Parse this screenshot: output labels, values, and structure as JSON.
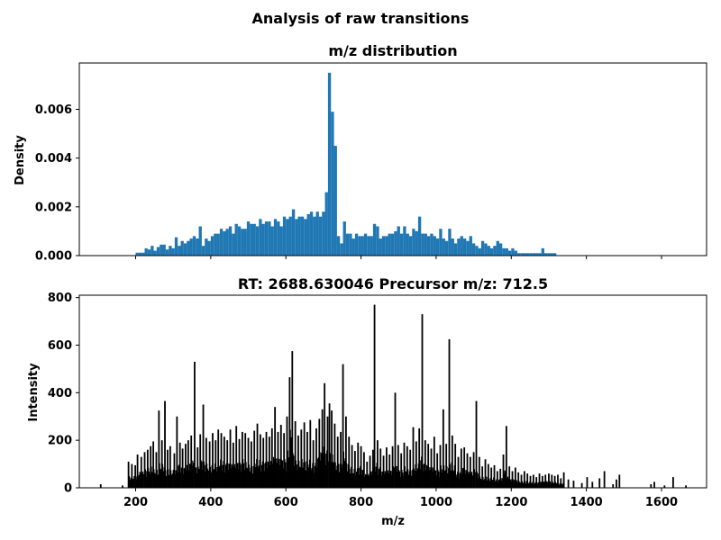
{
  "figure": {
    "suptitle": "Analysis of raw transitions"
  },
  "chart_data": [
    {
      "type": "bar",
      "title": "m/z distribution",
      "xlabel": "",
      "ylabel": "Density",
      "xlim": [
        50,
        1720
      ],
      "ylim": [
        0,
        0.0079
      ],
      "yticks": [
        "0.000",
        "0.002",
        "0.004",
        "0.006"
      ],
      "ytick_values": [
        0,
        0.002,
        0.004,
        0.006
      ],
      "xticks": [
        200,
        400,
        600,
        800,
        1000,
        1200,
        1400,
        1600
      ],
      "xtick_labels_shown": false,
      "bar_color": "#1f77b4",
      "bin_width": 8,
      "bins": [
        [
          200,
          0.00012
        ],
        [
          208,
          0.00012
        ],
        [
          216,
          0.00012
        ],
        [
          224,
          0.0003
        ],
        [
          232,
          0.00025
        ],
        [
          240,
          0.0004
        ],
        [
          248,
          0.0002
        ],
        [
          256,
          0.00035
        ],
        [
          264,
          0.00045
        ],
        [
          272,
          0.00045
        ],
        [
          280,
          0.00025
        ],
        [
          288,
          0.0004
        ],
        [
          296,
          0.0003
        ],
        [
          304,
          0.00075
        ],
        [
          312,
          0.0004
        ],
        [
          320,
          0.0006
        ],
        [
          328,
          0.0005
        ],
        [
          336,
          0.0006
        ],
        [
          344,
          0.0007
        ],
        [
          352,
          0.0008
        ],
        [
          360,
          0.0007
        ],
        [
          368,
          0.0012
        ],
        [
          376,
          0.0004
        ],
        [
          384,
          0.0007
        ],
        [
          392,
          0.0006
        ],
        [
          400,
          0.0008
        ],
        [
          408,
          0.0009
        ],
        [
          416,
          0.0009
        ],
        [
          424,
          0.0011
        ],
        [
          432,
          0.001
        ],
        [
          440,
          0.0011
        ],
        [
          448,
          0.0012
        ],
        [
          456,
          0.0009
        ],
        [
          464,
          0.0013
        ],
        [
          472,
          0.0012
        ],
        [
          480,
          0.0011
        ],
        [
          488,
          0.0011
        ],
        [
          496,
          0.0014
        ],
        [
          504,
          0.0013
        ],
        [
          512,
          0.0013
        ],
        [
          520,
          0.0012
        ],
        [
          528,
          0.0015
        ],
        [
          536,
          0.0013
        ],
        [
          544,
          0.0014
        ],
        [
          552,
          0.0014
        ],
        [
          560,
          0.0012
        ],
        [
          568,
          0.0015
        ],
        [
          576,
          0.0014
        ],
        [
          584,
          0.0012
        ],
        [
          592,
          0.0016
        ],
        [
          600,
          0.0015
        ],
        [
          608,
          0.0016
        ],
        [
          616,
          0.0019
        ],
        [
          624,
          0.0015
        ],
        [
          632,
          0.0016
        ],
        [
          640,
          0.0016
        ],
        [
          648,
          0.0015
        ],
        [
          656,
          0.0017
        ],
        [
          664,
          0.0018
        ],
        [
          672,
          0.0016
        ],
        [
          680,
          0.0018
        ],
        [
          688,
          0.0016
        ],
        [
          696,
          0.0018
        ],
        [
          704,
          0.0026
        ],
        [
          712,
          0.0075
        ],
        [
          720,
          0.0059
        ],
        [
          728,
          0.0045
        ],
        [
          736,
          0.0008
        ],
        [
          744,
          0.0005
        ],
        [
          752,
          0.0014
        ],
        [
          760,
          0.0009
        ],
        [
          768,
          0.0009
        ],
        [
          776,
          0.0007
        ],
        [
          784,
          0.0009
        ],
        [
          792,
          0.0008
        ],
        [
          800,
          0.0008
        ],
        [
          808,
          0.0009
        ],
        [
          816,
          0.0008
        ],
        [
          824,
          0.0008
        ],
        [
          832,
          0.0013
        ],
        [
          840,
          0.0012
        ],
        [
          848,
          0.0007
        ],
        [
          856,
          0.0008
        ],
        [
          864,
          0.0008
        ],
        [
          872,
          0.0009
        ],
        [
          880,
          0.0009
        ],
        [
          888,
          0.001
        ],
        [
          896,
          0.0012
        ],
        [
          904,
          0.0009
        ],
        [
          912,
          0.0012
        ],
        [
          920,
          0.0009
        ],
        [
          928,
          0.0008
        ],
        [
          936,
          0.0011
        ],
        [
          944,
          0.001
        ],
        [
          952,
          0.0016
        ],
        [
          960,
          0.0009
        ],
        [
          968,
          0.0009
        ],
        [
          976,
          0.0008
        ],
        [
          984,
          0.0009
        ],
        [
          992,
          0.0008
        ],
        [
          1000,
          0.0007
        ],
        [
          1008,
          0.0011
        ],
        [
          1016,
          0.0007
        ],
        [
          1024,
          0.0006
        ],
        [
          1032,
          0.0011
        ],
        [
          1040,
          0.0007
        ],
        [
          1048,
          0.0005
        ],
        [
          1056,
          0.0007
        ],
        [
          1064,
          0.0008
        ],
        [
          1072,
          0.0007
        ],
        [
          1080,
          0.0006
        ],
        [
          1088,
          0.0008
        ],
        [
          1096,
          0.0005
        ],
        [
          1104,
          0.0004
        ],
        [
          1112,
          0.0003
        ],
        [
          1120,
          0.0006
        ],
        [
          1128,
          0.0005
        ],
        [
          1136,
          0.0004
        ],
        [
          1144,
          0.0003
        ],
        [
          1152,
          0.0004
        ],
        [
          1160,
          0.0006
        ],
        [
          1168,
          0.0005
        ],
        [
          1176,
          0.0003
        ],
        [
          1184,
          0.0003
        ],
        [
          1192,
          0.0002
        ],
        [
          1200,
          0.0003
        ],
        [
          1208,
          0.0002
        ],
        [
          1216,
          0.0001
        ],
        [
          1224,
          0.0001
        ],
        [
          1232,
          0.0001
        ],
        [
          1240,
          0.0001
        ],
        [
          1248,
          0.0001
        ],
        [
          1256,
          0.0001
        ],
        [
          1264,
          0.0001
        ],
        [
          1272,
          0.0001
        ],
        [
          1280,
          0.0003
        ],
        [
          1288,
          0.0001
        ],
        [
          1296,
          0.0001
        ],
        [
          1304,
          0.0001
        ],
        [
          1312,
          0.0001
        ]
      ]
    },
    {
      "type": "bar",
      "title": "RT: 2688.630046   Precursor m/z: 712.5",
      "xlabel": "m/z",
      "ylabel": "Intensity",
      "xlim": [
        50,
        1720
      ],
      "ylim": [
        0,
        810
      ],
      "yticks": [
        0,
        200,
        400,
        600,
        800
      ],
      "xticks": [
        200,
        400,
        600,
        800,
        1000,
        1200,
        1400,
        1600
      ],
      "bar_color": "#000000",
      "peaks": [
        [
          107,
          15
        ],
        [
          165,
          10
        ],
        [
          181,
          110
        ],
        [
          190,
          100
        ],
        [
          199,
          95
        ],
        [
          205,
          140
        ],
        [
          215,
          130
        ],
        [
          224,
          150
        ],
        [
          232,
          160
        ],
        [
          240,
          175
        ],
        [
          247,
          195
        ],
        [
          255,
          150
        ],
        [
          262,
          325
        ],
        [
          270,
          200
        ],
        [
          278,
          365
        ],
        [
          285,
          160
        ],
        [
          292,
          175
        ],
        [
          303,
          145
        ],
        [
          310,
          300
        ],
        [
          318,
          190
        ],
        [
          325,
          165
        ],
        [
          333,
          185
        ],
        [
          340,
          200
        ],
        [
          348,
          220
        ],
        [
          357,
          530
        ],
        [
          365,
          170
        ],
        [
          372,
          225
        ],
        [
          380,
          350
        ],
        [
          388,
          210
        ],
        [
          397,
          195
        ],
        [
          405,
          230
        ],
        [
          413,
          200
        ],
        [
          420,
          245
        ],
        [
          428,
          230
        ],
        [
          436,
          215
        ],
        [
          444,
          200
        ],
        [
          452,
          245
        ],
        [
          460,
          190
        ],
        [
          468,
          260
        ],
        [
          476,
          205
        ],
        [
          484,
          235
        ],
        [
          492,
          230
        ],
        [
          500,
          210
        ],
        [
          508,
          195
        ],
        [
          516,
          240
        ],
        [
          524,
          270
        ],
        [
          532,
          225
        ],
        [
          540,
          210
        ],
        [
          548,
          235
        ],
        [
          556,
          215
        ],
        [
          563,
          250
        ],
        [
          571,
          340
        ],
        [
          579,
          235
        ],
        [
          587,
          265
        ],
        [
          595,
          230
        ],
        [
          603,
          300
        ],
        [
          610,
          465
        ],
        [
          617,
          575
        ],
        [
          625,
          280
        ],
        [
          633,
          220
        ],
        [
          641,
          245
        ],
        [
          649,
          275
        ],
        [
          657,
          235
        ],
        [
          665,
          285
        ],
        [
          673,
          200
        ],
        [
          681,
          250
        ],
        [
          689,
          290
        ],
        [
          697,
          330
        ],
        [
          703,
          440
        ],
        [
          711,
          300
        ],
        [
          716,
          355
        ],
        [
          722,
          325
        ],
        [
          730,
          270
        ],
        [
          738,
          215
        ],
        [
          746,
          235
        ],
        [
          752,
          520
        ],
        [
          760,
          300
        ],
        [
          768,
          215
        ],
        [
          776,
          180
        ],
        [
          784,
          155
        ],
        [
          792,
          190
        ],
        [
          800,
          175
        ],
        [
          808,
          150
        ],
        [
          816,
          110
        ],
        [
          824,
          135
        ],
        [
          832,
          160
        ],
        [
          836,
          770
        ],
        [
          844,
          200
        ],
        [
          852,
          165
        ],
        [
          860,
          135
        ],
        [
          868,
          170
        ],
        [
          876,
          140
        ],
        [
          884,
          175
        ],
        [
          891,
          400
        ],
        [
          899,
          180
        ],
        [
          907,
          145
        ],
        [
          915,
          190
        ],
        [
          923,
          175
        ],
        [
          931,
          160
        ],
        [
          939,
          255
        ],
        [
          947,
          195
        ],
        [
          955,
          250
        ],
        [
          963,
          730
        ],
        [
          971,
          200
        ],
        [
          979,
          185
        ],
        [
          987,
          165
        ],
        [
          995,
          215
        ],
        [
          1003,
          145
        ],
        [
          1011,
          180
        ],
        [
          1019,
          330
        ],
        [
          1027,
          185
        ],
        [
          1035,
          625
        ],
        [
          1043,
          220
        ],
        [
          1051,
          185
        ],
        [
          1059,
          130
        ],
        [
          1067,
          165
        ],
        [
          1075,
          170
        ],
        [
          1083,
          145
        ],
        [
          1091,
          130
        ],
        [
          1100,
          150
        ],
        [
          1107,
          365
        ],
        [
          1115,
          130
        ],
        [
          1123,
          90
        ],
        [
          1131,
          120
        ],
        [
          1139,
          100
        ],
        [
          1147,
          85
        ],
        [
          1155,
          95
        ],
        [
          1163,
          70
        ],
        [
          1171,
          80
        ],
        [
          1179,
          140
        ],
        [
          1187,
          260
        ],
        [
          1195,
          90
        ],
        [
          1203,
          70
        ],
        [
          1211,
          85
        ],
        [
          1219,
          65
        ],
        [
          1227,
          55
        ],
        [
          1235,
          70
        ],
        [
          1243,
          60
        ],
        [
          1251,
          50
        ],
        [
          1259,
          55
        ],
        [
          1267,
          45
        ],
        [
          1275,
          60
        ],
        [
          1283,
          50
        ],
        [
          1291,
          55
        ],
        [
          1300,
          60
        ],
        [
          1308,
          55
        ],
        [
          1316,
          50
        ],
        [
          1324,
          55
        ],
        [
          1332,
          40
        ],
        [
          1340,
          65
        ],
        [
          1352,
          35
        ],
        [
          1366,
          30
        ],
        [
          1388,
          20
        ],
        [
          1402,
          45
        ],
        [
          1416,
          25
        ],
        [
          1435,
          40
        ],
        [
          1448,
          70
        ],
        [
          1471,
          15
        ],
        [
          1480,
          35
        ],
        [
          1488,
          55
        ],
        [
          1572,
          15
        ],
        [
          1581,
          25
        ],
        [
          1608,
          10
        ],
        [
          1631,
          45
        ],
        [
          1665,
          10
        ]
      ]
    }
  ]
}
